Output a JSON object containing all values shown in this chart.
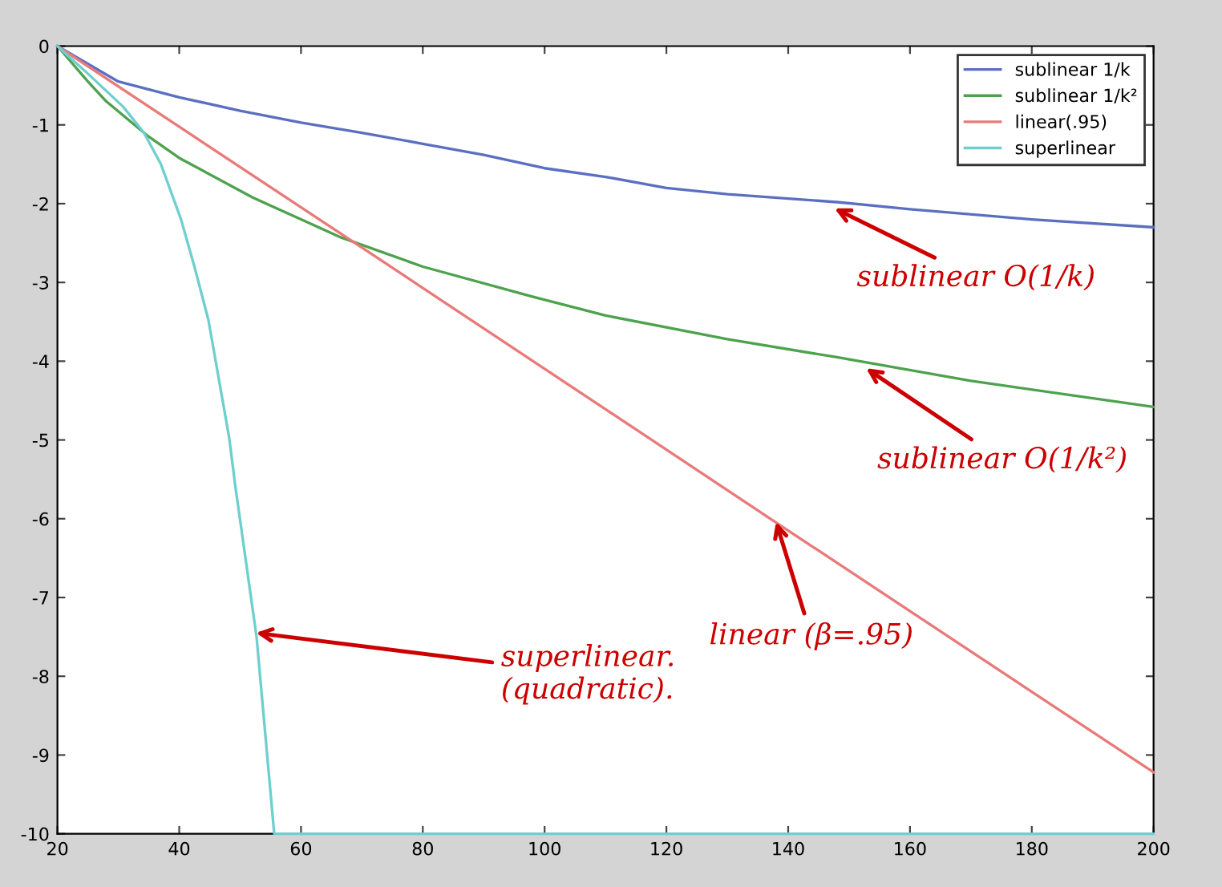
{
  "chart_data": {
    "type": "line",
    "xlim": [
      20,
      200
    ],
    "ylim": [
      -10,
      0
    ],
    "xticks": [
      20,
      40,
      60,
      80,
      100,
      120,
      140,
      160,
      180,
      200
    ],
    "yticks": [
      0,
      -1,
      -2,
      -3,
      -4,
      -5,
      -6,
      -7,
      -8,
      -9,
      -10
    ],
    "grid": false,
    "legend": "top right",
    "marker": "none",
    "line_style": "solid",
    "series": [
      {
        "name": "sublinear 1/k",
        "color": "#5b6fc2",
        "x": [
          20,
          30,
          40,
          50,
          60,
          70,
          80,
          90,
          100,
          110,
          120,
          130,
          148,
          160,
          180,
          200
        ],
        "values": [
          0,
          -0.45,
          -0.65,
          -0.82,
          -0.97,
          -1.1,
          -1.24,
          -1.38,
          -1.55,
          -1.66,
          -1.8,
          -1.88,
          -1.98,
          -2.07,
          -2.2,
          -2.3
        ]
      },
      {
        "name": "sublinear 1/k²",
        "color": "#4ea24e",
        "x": [
          20,
          25,
          28,
          35,
          40,
          52,
          60,
          66.6,
          80,
          98,
          110,
          130,
          148,
          170,
          200
        ],
        "values": [
          0,
          -0.45,
          -0.7,
          -1.15,
          -1.42,
          -1.92,
          -2.2,
          -2.43,
          -2.8,
          -3.18,
          -3.42,
          -3.72,
          -3.95,
          -4.25,
          -4.58
        ]
      },
      {
        "name": "linear(.95)",
        "color": "#e97a7a",
        "x": [
          20,
          80,
          140,
          200
        ],
        "values": [
          0,
          -3.07,
          -6.15,
          -9.22
        ]
      },
      {
        "name": "superlinear",
        "color": "#6fcfcf",
        "x": [
          20,
          25,
          30.8,
          34.2,
          37,
          40.3,
          42.5,
          44.8,
          48.2,
          49.2,
          52.7,
          55.6,
          200
        ],
        "values": [
          0,
          -0.35,
          -0.77,
          -1.1,
          -1.5,
          -2.2,
          -2.8,
          -3.48,
          -4.97,
          -5.58,
          -7.5,
          -10,
          -10
        ]
      }
    ],
    "annotations": [
      {
        "text": "sublinear O(1/k)",
        "x": 147.6,
        "y": -2.06
      },
      {
        "text": "sublinear O(1/k²)",
        "x": 152.8,
        "y": -4.09
      },
      {
        "text": "linear (β=.95)",
        "x": 138,
        "y": -6.04
      },
      {
        "text": "superlinear.\n(quadratic).",
        "x": 52.6,
        "y": -7.45
      }
    ]
  }
}
